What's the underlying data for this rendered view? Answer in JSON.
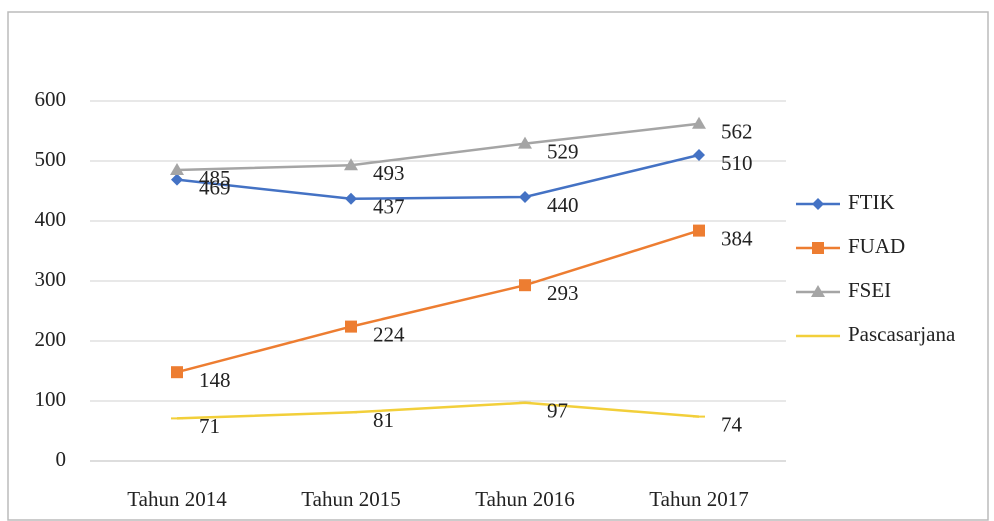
{
  "chart_data": {
    "type": "line",
    "categories": [
      "Tahun 2014",
      "Tahun 2015",
      "Tahun 2016",
      "Tahun 2017"
    ],
    "series": [
      {
        "name": "FTIK",
        "color": "#4472c4",
        "marker": "diamond",
        "values": [
          469,
          437,
          440,
          510
        ]
      },
      {
        "name": "FUAD",
        "color": "#ed7d31",
        "marker": "square",
        "values": [
          148,
          224,
          293,
          384
        ]
      },
      {
        "name": "FSEI",
        "color": "#a5a5a5",
        "marker": "triangle",
        "values": [
          485,
          493,
          529,
          562
        ]
      },
      {
        "name": "Pascasarjana",
        "color": "#f2cf3a",
        "marker": "dash",
        "values": [
          71,
          81,
          97,
          74
        ]
      }
    ],
    "ylim": [
      0,
      600
    ],
    "yticks": [
      0,
      100,
      200,
      300,
      400,
      500,
      600
    ],
    "grid": true,
    "legend": "right",
    "data_labels": true
  }
}
